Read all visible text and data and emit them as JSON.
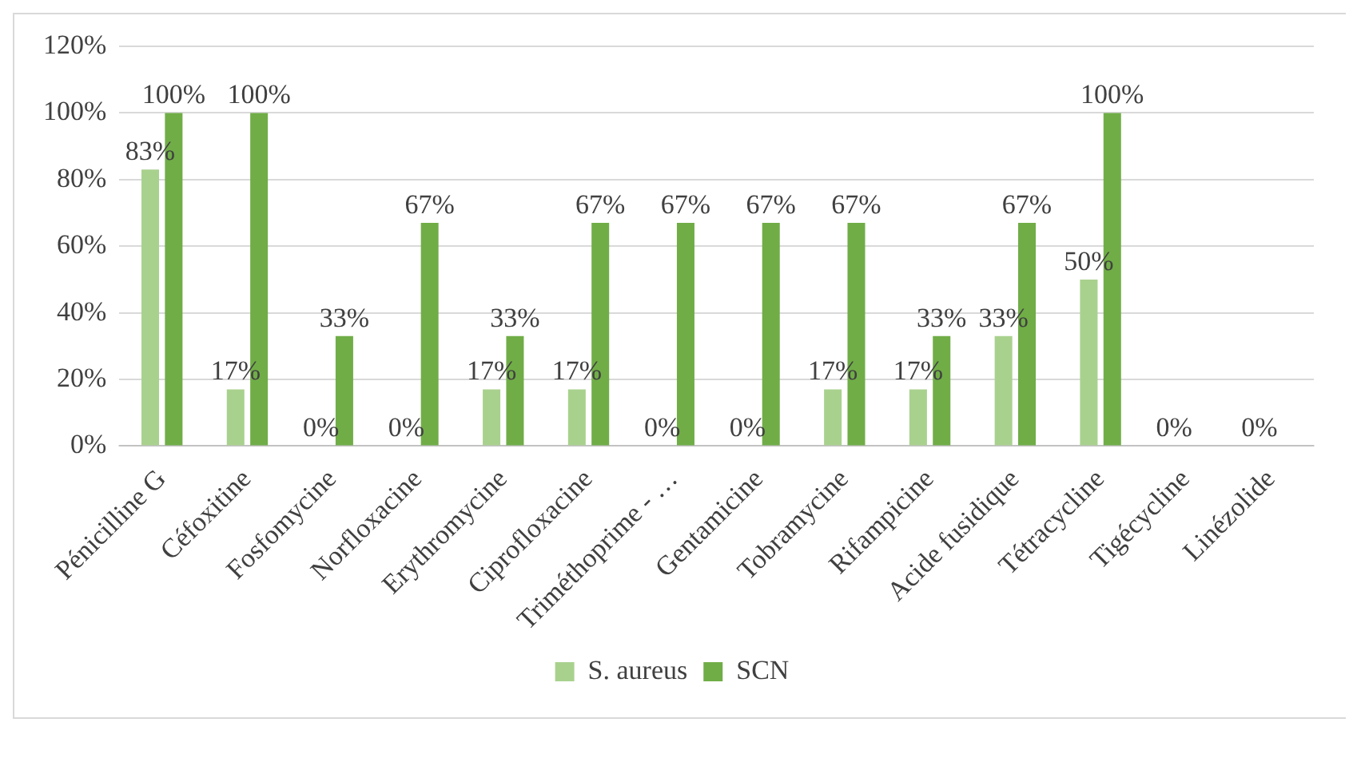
{
  "chart_data": {
    "type": "bar",
    "categories": [
      "Pénicilline G",
      "Céfoxitine",
      "Fosfomycine",
      "Norfloxacine",
      "Erythromycine",
      "Ciprofloxacine",
      "Triméthoprime - …",
      "Gentamicine",
      "Tobramycine",
      "Rifampicine",
      "Acide fusidique",
      "Tétracycline",
      "Tigécycline",
      "Linézolide"
    ],
    "series": [
      {
        "name": "S. aureus",
        "color": "#a9d18e",
        "values": [
          83,
          17,
          0,
          0,
          17,
          17,
          0,
          0,
          17,
          17,
          33,
          50,
          0,
          0
        ],
        "value_labels": [
          "83%",
          "17%",
          "0%",
          "0%",
          "17%",
          "17%",
          "0%",
          "0%",
          "17%",
          "17%",
          "33%",
          "50%",
          "0%",
          "0%"
        ]
      },
      {
        "name": "SCN",
        "color": "#70ad47",
        "values": [
          100,
          100,
          33,
          67,
          33,
          67,
          67,
          67,
          67,
          33,
          67,
          100,
          0,
          0
        ],
        "value_labels": [
          "100%",
          "100%",
          "33%",
          "67%",
          "33%",
          "67%",
          "67%",
          "67%",
          "67%",
          "33%",
          "67%",
          "100%",
          null,
          null
        ]
      }
    ],
    "ylim": [
      0,
      120
    ],
    "yticks": [
      {
        "value": 0,
        "label": "0%"
      },
      {
        "value": 20,
        "label": "20%"
      },
      {
        "value": 40,
        "label": "40%"
      },
      {
        "value": 60,
        "label": "60%"
      },
      {
        "value": 80,
        "label": "80%"
      },
      {
        "value": 100,
        "label": "100%"
      },
      {
        "value": 120,
        "label": "120%"
      }
    ],
    "grid": "y",
    "legend": "bottom"
  }
}
